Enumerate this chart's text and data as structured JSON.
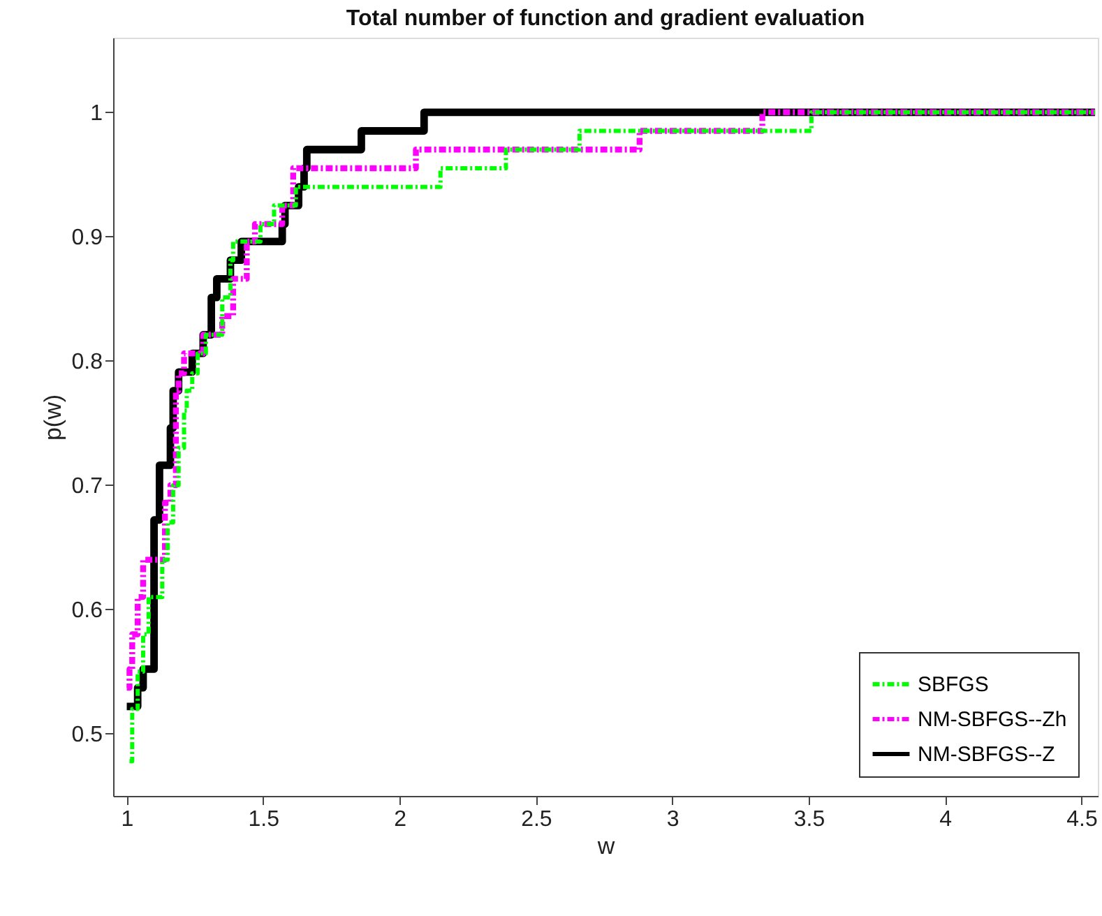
{
  "chart_data": {
    "type": "step",
    "title": "Total number of function and gradient evaluation",
    "xlabel": "w",
    "ylabel": "p(w)",
    "xlim": [
      0.95,
      4.56
    ],
    "ylim": [
      0.45,
      1.06
    ],
    "xticks": [
      1,
      1.5,
      2,
      2.5,
      3,
      3.5,
      4,
      4.5
    ],
    "yticks": [
      0.5,
      0.6,
      0.7,
      0.8,
      0.9,
      1
    ],
    "grid": false,
    "legend": "bottom right",
    "marker": "none",
    "series": [
      {
        "name": "SBFGS",
        "color": "#00ff00",
        "line_style": "dashed",
        "x": [
          1.01,
          1.02,
          1.04,
          1.06,
          1.08,
          1.13,
          1.15,
          1.17,
          1.19,
          1.21,
          1.22,
          1.24,
          1.26,
          1.29,
          1.35,
          1.38,
          1.39,
          1.49,
          1.54,
          1.62,
          2.15,
          2.39,
          2.66,
          3.51,
          4.55
        ],
        "values": [
          0.478,
          0.52,
          0.55,
          0.58,
          0.61,
          0.64,
          0.67,
          0.7,
          0.73,
          0.76,
          0.776,
          0.79,
          0.806,
          0.821,
          0.851,
          0.881,
          0.896,
          0.91,
          0.925,
          0.94,
          0.955,
          0.97,
          0.985,
          1.0,
          1.0
        ]
      },
      {
        "name": "NM-SBFGS--Zh",
        "color": "#ff00ff",
        "line_style": "dashed",
        "x": [
          1.0,
          1.01,
          1.02,
          1.04,
          1.06,
          1.14,
          1.16,
          1.18,
          1.19,
          1.21,
          1.28,
          1.35,
          1.39,
          1.44,
          1.47,
          1.57,
          1.61,
          2.06,
          2.88,
          3.33,
          4.55
        ],
        "values": [
          0.537,
          0.552,
          0.58,
          0.61,
          0.64,
          0.686,
          0.7,
          0.776,
          0.79,
          0.806,
          0.821,
          0.836,
          0.866,
          0.896,
          0.91,
          0.925,
          0.955,
          0.97,
          0.985,
          1.0,
          1.0
        ]
      },
      {
        "name": "NM-SBFGS--Z",
        "color": "#000000",
        "line_style": "solid",
        "x": [
          1.0,
          1.04,
          1.06,
          1.1,
          1.12,
          1.16,
          1.17,
          1.19,
          1.24,
          1.28,
          1.31,
          1.33,
          1.38,
          1.42,
          1.57,
          1.58,
          1.63,
          1.65,
          1.66,
          1.86,
          2.09,
          4.55
        ],
        "values": [
          0.522,
          0.537,
          0.552,
          0.672,
          0.716,
          0.746,
          0.776,
          0.791,
          0.806,
          0.821,
          0.851,
          0.866,
          0.881,
          0.896,
          0.91,
          0.925,
          0.94,
          0.955,
          0.97,
          0.985,
          1.0,
          1.0
        ]
      }
    ]
  }
}
